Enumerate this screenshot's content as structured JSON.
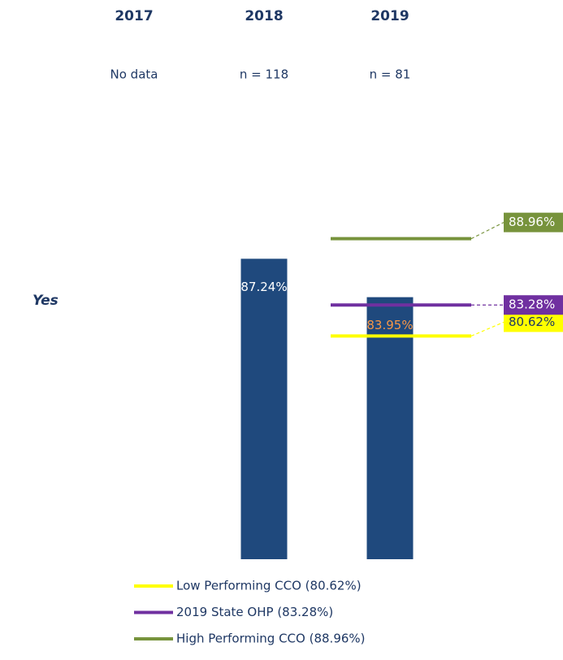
{
  "chart_data": {
    "type": "bar",
    "row_label": "Yes",
    "categories": [
      "2017",
      "2018",
      "2019"
    ],
    "subtitles": [
      "No data",
      "n = 118",
      "n = 81"
    ],
    "values": [
      null,
      87.24,
      83.95
    ],
    "value_labels": [
      null,
      "87.24%",
      "83.95%"
    ],
    "label_colors": [
      null,
      "#ffffff",
      "#f79646"
    ],
    "color": "#1f497d",
    "ylim": [
      61.5,
      92
    ],
    "reference_lines": [
      {
        "name": "Low Performing CCO (80.62%)",
        "value": 80.62,
        "value_label": "80.62%",
        "color": "#ffff00"
      },
      {
        "name": "2019 State OHP (83.28%)",
        "value": 83.28,
        "value_label": "83.28%",
        "color": "#7030a0"
      },
      {
        "name": "High Performing CCO (88.96%)",
        "value": 88.96,
        "value_label": "88.96%",
        "color": "#77933c"
      }
    ]
  }
}
